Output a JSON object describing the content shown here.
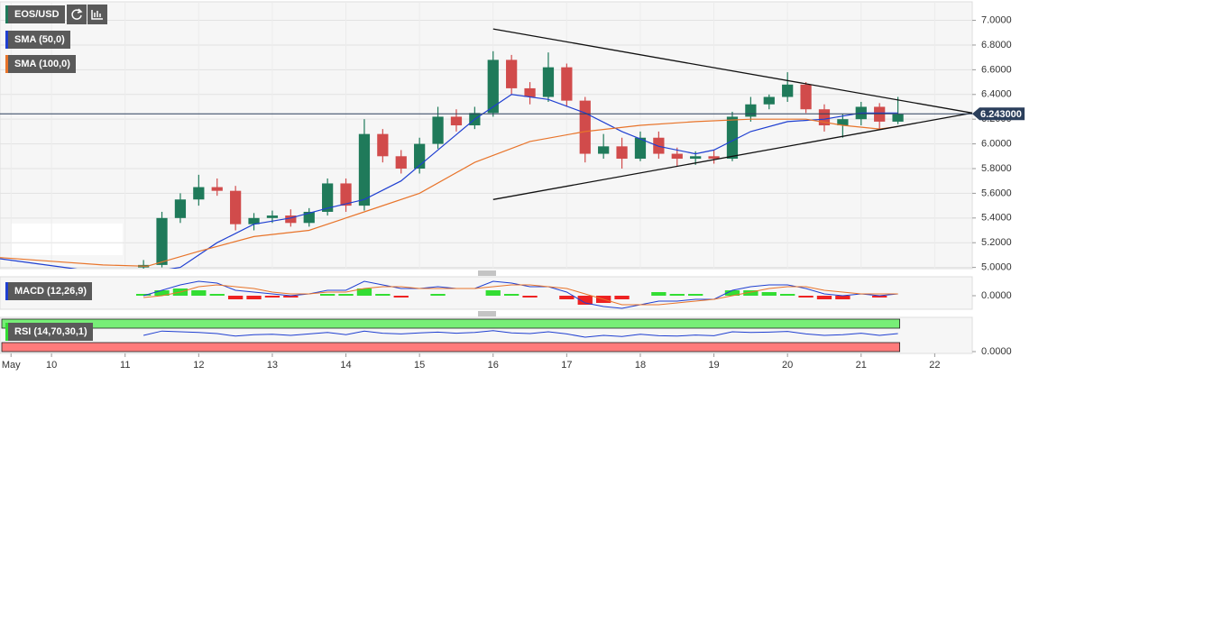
{
  "chart_data": {
    "type": "candlestick",
    "title": "EOS/USD",
    "x": [
      11.25,
      11.5,
      11.75,
      12.0,
      12.25,
      12.5,
      12.75,
      13.0,
      13.25,
      13.5,
      13.75,
      14.0,
      14.25,
      14.5,
      14.75,
      15.0,
      15.25,
      15.5,
      15.75,
      16.0,
      16.25,
      16.5,
      16.75,
      17.0,
      17.25,
      17.5,
      17.75,
      18.0,
      18.25,
      18.5,
      18.75,
      19.0,
      19.25,
      19.5,
      19.75,
      20.0,
      20.25,
      20.5,
      20.75,
      21.0,
      21.25,
      21.5
    ],
    "open": [
      5.0,
      5.02,
      5.4,
      5.55,
      5.65,
      5.62,
      5.35,
      5.4,
      5.42,
      5.36,
      5.45,
      5.68,
      5.5,
      6.08,
      5.9,
      5.8,
      6.0,
      6.22,
      6.15,
      6.25,
      6.68,
      6.45,
      6.38,
      6.62,
      6.35,
      5.92,
      5.98,
      5.88,
      6.05,
      5.92,
      5.88,
      5.9,
      5.88,
      6.22,
      6.32,
      6.38,
      6.48,
      6.28,
      6.15,
      6.2,
      6.3,
      6.18
    ],
    "high": [
      5.06,
      5.45,
      5.6,
      5.75,
      5.72,
      5.66,
      5.44,
      5.46,
      5.47,
      5.48,
      5.72,
      5.72,
      6.2,
      6.12,
      5.95,
      6.05,
      6.3,
      6.28,
      6.3,
      6.75,
      6.72,
      6.5,
      6.74,
      6.65,
      6.38,
      6.08,
      6.05,
      6.1,
      6.1,
      5.97,
      5.94,
      5.95,
      6.26,
      6.38,
      6.4,
      6.58,
      6.5,
      6.32,
      6.24,
      6.34,
      6.33,
      6.38
    ],
    "low": [
      4.98,
      5.0,
      5.36,
      5.5,
      5.58,
      5.3,
      5.3,
      5.36,
      5.33,
      5.33,
      5.42,
      5.45,
      5.46,
      5.85,
      5.76,
      5.76,
      5.96,
      6.1,
      6.12,
      6.22,
      6.4,
      6.32,
      6.34,
      6.3,
      5.85,
      5.88,
      5.8,
      5.86,
      5.88,
      5.82,
      5.83,
      5.84,
      5.86,
      6.18,
      6.28,
      6.34,
      6.25,
      6.1,
      6.05,
      6.15,
      6.12,
      6.16
    ],
    "close": [
      5.02,
      5.4,
      5.55,
      5.65,
      5.62,
      5.35,
      5.4,
      5.42,
      5.36,
      5.45,
      5.68,
      5.5,
      6.08,
      5.9,
      5.8,
      6.0,
      6.22,
      6.15,
      6.25,
      6.68,
      6.45,
      6.38,
      6.62,
      6.35,
      5.92,
      5.98,
      5.88,
      6.05,
      5.92,
      5.88,
      5.9,
      5.88,
      6.22,
      6.32,
      6.38,
      6.48,
      6.28,
      6.15,
      6.2,
      6.3,
      6.18,
      6.24
    ],
    "up_color": "#1f7a5a",
    "down_color": "#d14b4b",
    "xlim": [
      9.3,
      22.51
    ],
    "xticks": [
      {
        "value": 9.45,
        "label": "May"
      },
      10,
      11,
      12,
      13,
      14,
      15,
      16,
      17,
      18,
      19,
      20,
      21,
      22
    ],
    "ylim": [
      4.99,
      7.15
    ],
    "yticks": [
      {
        "value": 5.0,
        "label": "5.0000"
      },
      {
        "value": 5.2,
        "label": "5.2000"
      },
      {
        "value": 5.4,
        "label": "5.4000"
      },
      {
        "value": 5.6,
        "label": "5.6000"
      },
      {
        "value": 5.8,
        "label": "5.8000"
      },
      {
        "value": 6.0,
        "label": "6.0000"
      },
      {
        "value": 6.2,
        "label": "6.2000"
      },
      {
        "value": 6.4,
        "label": "6.4000"
      },
      {
        "value": 6.6,
        "label": "6.6000"
      },
      {
        "value": 6.8,
        "label": "6.8000"
      },
      {
        "value": 7.0,
        "label": "7.0000"
      }
    ],
    "grid": true,
    "last_price": {
      "value": 6.243,
      "label": "6.243000"
    },
    "overlays": [
      {
        "name": "SMA (50,0)",
        "color": "#1f3fd1",
        "x": [
          9.3,
          9.8,
          10.3,
          11.0,
          11.75,
          12.25,
          12.75,
          13.25,
          13.75,
          14.25,
          14.75,
          15.25,
          15.75,
          16.25,
          16.75,
          17.25,
          17.75,
          18.25,
          18.75,
          19.0,
          19.5,
          20.0,
          20.5,
          21.0,
          21.5
        ],
        "values": [
          5.07,
          5.03,
          4.99,
          4.93,
          5.0,
          5.2,
          5.35,
          5.4,
          5.48,
          5.55,
          5.7,
          5.95,
          6.2,
          6.4,
          6.36,
          6.25,
          6.1,
          5.98,
          5.92,
          5.95,
          6.1,
          6.18,
          6.2,
          6.25,
          6.25
        ]
      },
      {
        "name": "SMA (100,0)",
        "color": "#e8742a",
        "x": [
          9.3,
          10.0,
          10.7,
          11.3,
          12.0,
          12.75,
          13.5,
          14.25,
          15.0,
          15.75,
          16.5,
          17.25,
          18.0,
          18.75,
          19.5,
          20.25,
          20.75,
          21.25,
          21.5
        ],
        "values": [
          5.08,
          5.05,
          5.02,
          5.01,
          5.13,
          5.25,
          5.3,
          5.45,
          5.6,
          5.85,
          6.02,
          6.1,
          6.15,
          6.18,
          6.2,
          6.2,
          6.15,
          6.12,
          6.14
        ]
      }
    ],
    "trendlines": [
      {
        "color": "#111111",
        "x": [
          16.0,
          22.51
        ],
        "values": [
          6.93,
          6.25
        ]
      },
      {
        "color": "#111111",
        "x": [
          16.0,
          22.51
        ],
        "values": [
          5.55,
          6.25
        ]
      }
    ],
    "macd": {
      "name": "MACD (12,26,9)",
      "ylim": [
        -0.075,
        0.105
      ],
      "yticks": [
        {
          "value": 0,
          "label": "0.0000"
        }
      ],
      "macd_color": "#1f3fd1",
      "signal_color": "#e8742a",
      "up_color": "#33dd33",
      "down_color": "#ee2222",
      "macd": [
        0.0,
        0.03,
        0.06,
        0.08,
        0.07,
        0.03,
        0.02,
        0.01,
        0.0,
        0.01,
        0.03,
        0.03,
        0.08,
        0.06,
        0.04,
        0.04,
        0.05,
        0.04,
        0.04,
        0.08,
        0.07,
        0.05,
        0.05,
        0.02,
        -0.04,
        -0.06,
        -0.07,
        -0.05,
        -0.03,
        -0.03,
        -0.02,
        -0.02,
        0.03,
        0.05,
        0.06,
        0.06,
        0.04,
        0.01,
        0.0,
        0.01,
        0.0,
        0.01
      ],
      "signal": [
        -0.01,
        0.0,
        0.02,
        0.05,
        0.06,
        0.05,
        0.04,
        0.02,
        0.01,
        0.01,
        0.02,
        0.02,
        0.04,
        0.05,
        0.05,
        0.04,
        0.04,
        0.04,
        0.04,
        0.05,
        0.06,
        0.06,
        0.05,
        0.04,
        0.01,
        -0.02,
        -0.05,
        -0.05,
        -0.05,
        -0.04,
        -0.03,
        -0.02,
        0.0,
        0.02,
        0.04,
        0.05,
        0.05,
        0.03,
        0.02,
        0.01,
        0.01,
        0.01
      ],
      "histogram": [
        0.01,
        0.03,
        0.04,
        0.03,
        0.01,
        -0.02,
        -0.02,
        -0.01,
        -0.01,
        0.0,
        0.01,
        0.01,
        0.04,
        0.01,
        -0.01,
        0.0,
        0.01,
        0.0,
        0.0,
        0.03,
        0.01,
        -0.01,
        0.0,
        -0.02,
        -0.05,
        -0.04,
        -0.02,
        0.0,
        0.02,
        0.01,
        0.01,
        0.0,
        0.03,
        0.03,
        0.02,
        0.01,
        -0.01,
        -0.02,
        -0.02,
        0.0,
        -0.01,
        0.0
      ]
    },
    "rsi": {
      "name": "RSI (14,70,30,1)",
      "ylim": [
        0,
        100
      ],
      "yticks": [
        {
          "value": 0,
          "label": "0.0000"
        }
      ],
      "overbought": 70,
      "oversold": 30,
      "color": "#1f3fd1",
      "overbought_color": "#77ee77",
      "oversold_color": "#ff7b7b",
      "values": [
        50,
        62,
        60,
        58,
        55,
        48,
        52,
        53,
        50,
        54,
        58,
        52,
        62,
        56,
        54,
        57,
        59,
        56,
        58,
        63,
        57,
        55,
        60,
        54,
        45,
        50,
        47,
        53,
        49,
        48,
        51,
        49,
        60,
        58,
        59,
        61,
        54,
        50,
        52,
        56,
        50,
        55
      ]
    }
  }
}
